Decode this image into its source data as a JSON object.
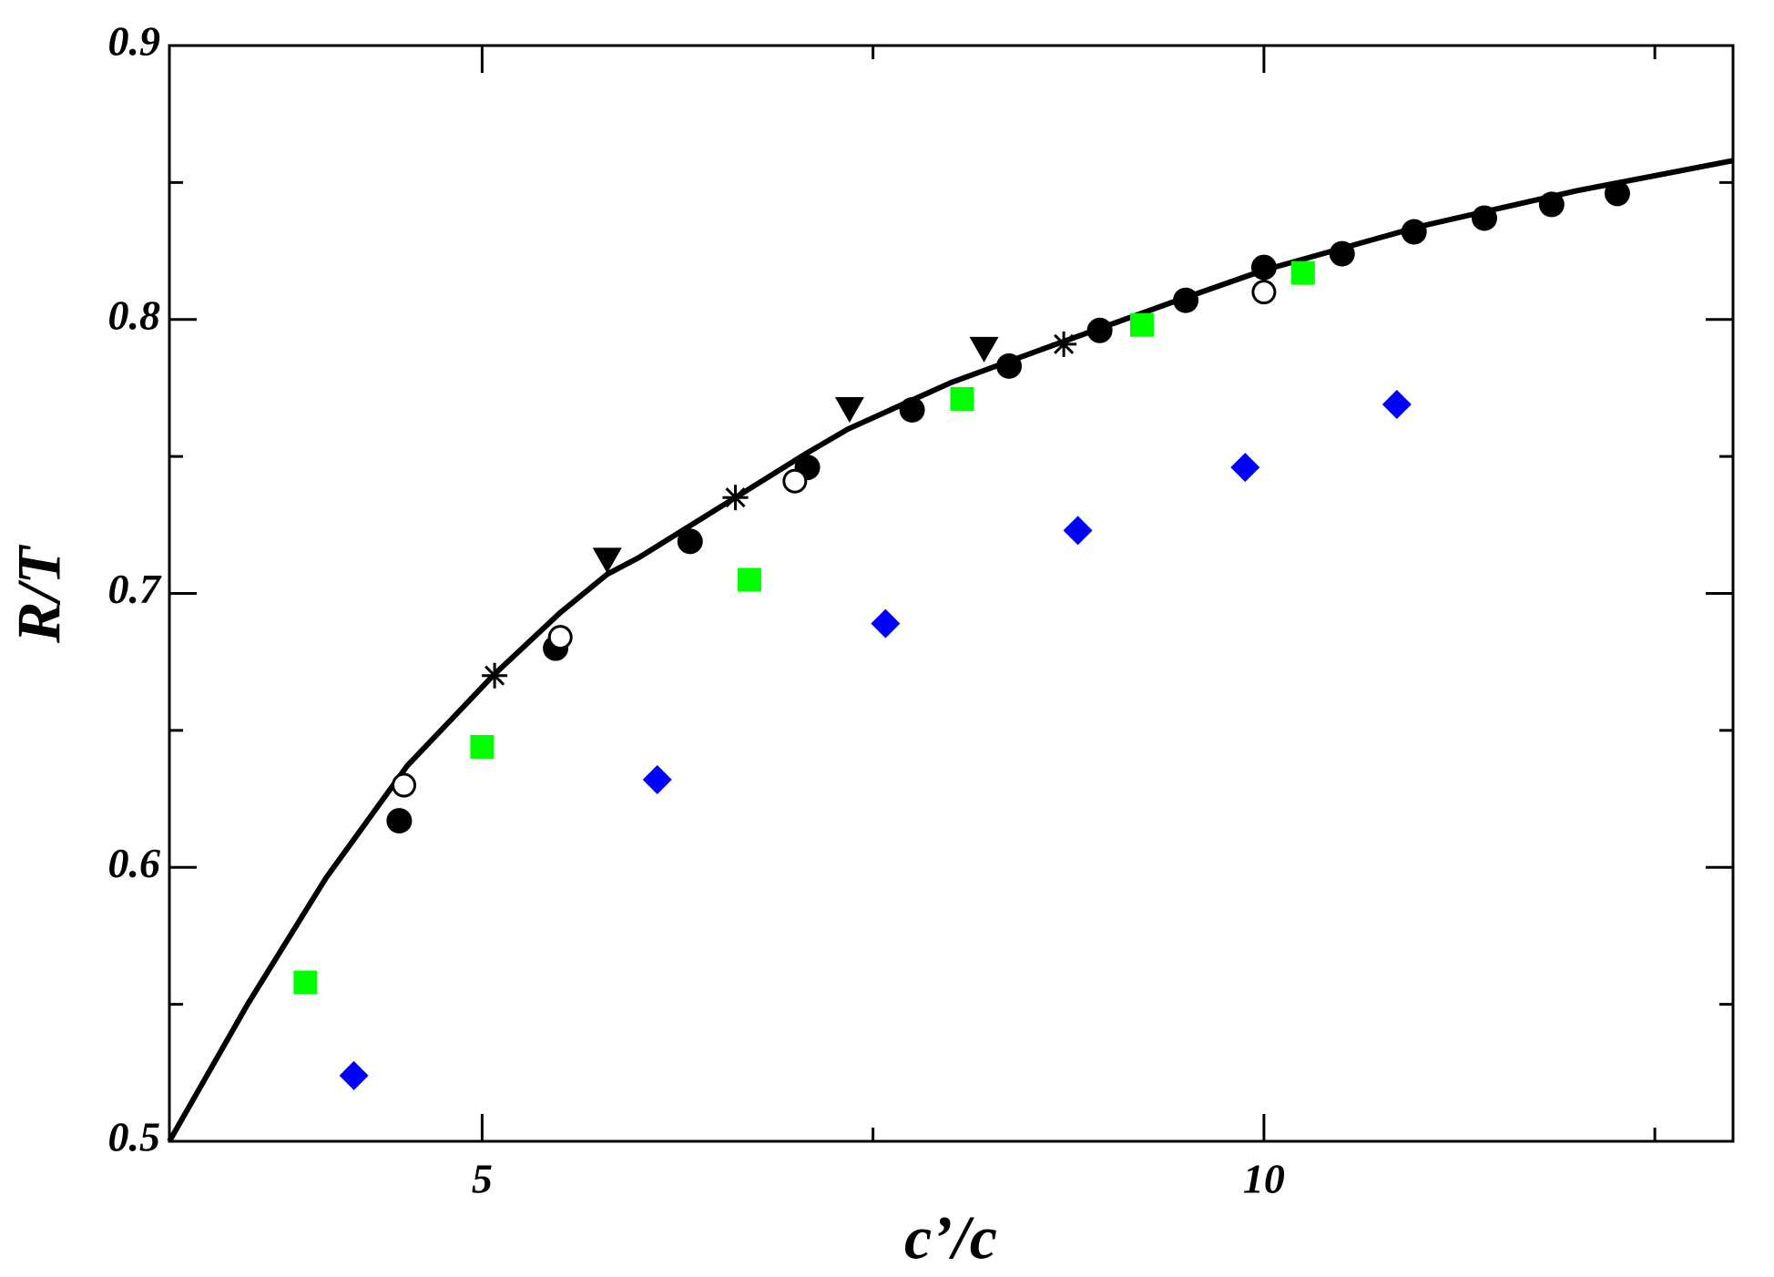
{
  "chart_data": {
    "type": "scatter",
    "x_label": "c’/c",
    "y_label": "R/T",
    "xlim": [
      3,
      13
    ],
    "ylim": [
      0.5,
      0.9
    ],
    "xticks": [
      5,
      10
    ],
    "xminor_ticks": [
      7.5,
      12.5
    ],
    "yticks": [
      0.5,
      0.6,
      0.7,
      0.8,
      0.9
    ],
    "yminor_ticks": [
      0.55,
      0.65,
      0.75,
      0.85
    ],
    "mirror_ticks": true,
    "series": [
      {
        "marker": "line",
        "color": "#000000",
        "x": [
          3,
          3.25,
          3.5,
          3.75,
          4,
          4.52,
          5.07,
          5.5,
          5.8,
          6,
          6.62,
          7.07,
          7.34,
          8,
          8.72,
          9.4,
          10,
          11,
          12,
          13
        ],
        "values": [
          0.5,
          0.525,
          0.55,
          0.573,
          0.596,
          0.637,
          0.67,
          0.693,
          0.707,
          0.713,
          0.735,
          0.751,
          0.76,
          0.777,
          0.792,
          0.806,
          0.818,
          0.834,
          0.847,
          0.858
        ]
      },
      {
        "marker": "circle",
        "color": "#000000",
        "x": [
          4.47,
          5.47,
          6.33,
          7.08,
          7.75,
          8.37,
          8.95,
          9.5,
          10.0,
          10.5,
          10.96,
          11.41,
          11.84,
          12.26
        ],
        "values": [
          0.617,
          0.68,
          0.719,
          0.746,
          0.767,
          0.783,
          0.796,
          0.807,
          0.819,
          0.824,
          0.832,
          0.837,
          0.842,
          0.846
        ]
      },
      {
        "marker": "open-circle",
        "color": "#000000",
        "x": [
          4.5,
          5.5,
          7.0,
          10.0
        ],
        "values": [
          0.63,
          0.684,
          0.741,
          0.81
        ]
      },
      {
        "marker": "triangle-down",
        "color": "#000000",
        "x": [
          5.8,
          7.35,
          8.21
        ],
        "values": [
          0.712,
          0.767,
          0.789
        ]
      },
      {
        "marker": "asterisk",
        "color": "#000000",
        "x": [
          5.08,
          6.62,
          8.72
        ],
        "values": [
          0.67,
          0.735,
          0.791
        ]
      },
      {
        "marker": "square",
        "color": "#00ff00",
        "x": [
          3.87,
          5.0,
          6.71,
          8.07,
          9.22,
          10.25
        ],
        "values": [
          0.558,
          0.644,
          0.705,
          0.771,
          0.798,
          0.817
        ]
      },
      {
        "marker": "diamond",
        "color": "#0000ff",
        "x": [
          4.18,
          6.12,
          7.58,
          8.81,
          9.88,
          10.85
        ],
        "values": [
          0.524,
          0.632,
          0.689,
          0.723,
          0.746,
          0.769
        ]
      }
    ]
  }
}
